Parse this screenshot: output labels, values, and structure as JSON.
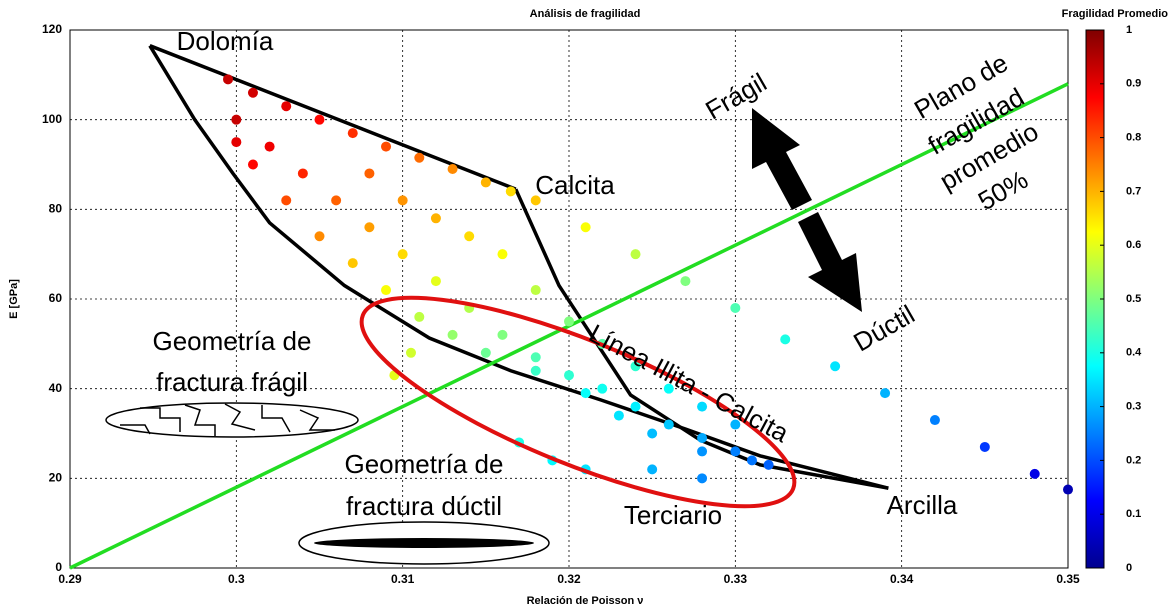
{
  "chart_data": {
    "type": "scatter",
    "title": "Análisis de fragilidad",
    "xlabel": "Relación de Poisson ν",
    "ylabel": "E [GPa]",
    "colorbar_label": "Fragilidad Promedio",
    "colormap": "jet",
    "grid": true,
    "xlim": [
      0.29,
      0.35
    ],
    "ylim": [
      0,
      120
    ],
    "xticks": [
      0.29,
      0.3,
      0.31,
      0.32,
      0.33,
      0.34,
      0.35
    ],
    "yticks": [
      0,
      20,
      40,
      60,
      80,
      100,
      120
    ],
    "clim": [
      0,
      1
    ],
    "cticks": [
      0,
      0.1,
      0.2,
      0.3,
      0.4,
      0.5,
      0.6,
      0.7,
      0.8,
      0.9,
      1
    ],
    "series": [
      {
        "x": [
          0.2995,
          0.301,
          0.303,
          0.305,
          0.307,
          0.309,
          0.311,
          0.313,
          0.315,
          0.3165,
          0.3,
          0.302,
          0.304,
          0.306,
          0.308,
          0.31,
          0.312,
          0.314,
          0.316,
          0.318,
          0.32,
          0.322,
          0.324,
          0.326,
          0.328,
          0.33,
          0.332,
          0.3,
          0.301,
          0.303,
          0.305,
          0.307,
          0.309,
          0.311,
          0.313,
          0.315,
          0.318,
          0.321,
          0.323,
          0.325,
          0.328,
          0.331,
          0.308,
          0.31,
          0.312,
          0.314,
          0.316,
          0.318,
          0.32,
          0.322,
          0.324,
          0.326,
          0.328,
          0.33,
          0.317,
          0.319,
          0.321,
          0.325,
          0.328,
          0.3095,
          0.3105,
          0.318,
          0.321,
          0.324,
          0.327,
          0.33,
          0.333,
          0.336,
          0.339,
          0.342,
          0.345,
          0.348,
          0.35
        ],
        "y": [
          109,
          106,
          103,
          100,
          97,
          94,
          91.5,
          89,
          86,
          84,
          100,
          94,
          88,
          82,
          76,
          70,
          64,
          58,
          52,
          47,
          43,
          40,
          36,
          32,
          29,
          26,
          23,
          95,
          90,
          82,
          74,
          68,
          62,
          56,
          52,
          48,
          44,
          39,
          34,
          30,
          26,
          24,
          88,
          82,
          78,
          74,
          70,
          62,
          55,
          50,
          45,
          40,
          36,
          32,
          28,
          24,
          22,
          22,
          20,
          43,
          48,
          82,
          76,
          70,
          64,
          58,
          51,
          45,
          39,
          33,
          27,
          21,
          17.5
        ],
        "c": [
          0.93,
          0.92,
          0.9,
          0.87,
          0.83,
          0.8,
          0.77,
          0.74,
          0.7,
          0.66,
          0.93,
          0.89,
          0.84,
          0.78,
          0.72,
          0.66,
          0.6,
          0.55,
          0.5,
          0.45,
          0.42,
          0.39,
          0.36,
          0.32,
          0.29,
          0.25,
          0.22,
          0.9,
          0.87,
          0.8,
          0.74,
          0.68,
          0.62,
          0.56,
          0.52,
          0.48,
          0.43,
          0.38,
          0.35,
          0.31,
          0.27,
          0.24,
          0.78,
          0.73,
          0.7,
          0.66,
          0.62,
          0.56,
          0.5,
          0.46,
          0.42,
          0.38,
          0.34,
          0.3,
          0.4,
          0.37,
          0.35,
          0.3,
          0.26,
          0.6,
          0.58,
          0.68,
          0.62,
          0.56,
          0.5,
          0.45,
          0.4,
          0.35,
          0.3,
          0.25,
          0.18,
          0.1,
          0.05
        ]
      }
    ],
    "lines": [
      {
        "color": "#000000",
        "x": [
          0.2948,
          0.3168
        ],
        "y": [
          116.5,
          84.5
        ]
      },
      {
        "color": "#000000",
        "x": [
          0.2948,
          0.2975,
          0.2998,
          0.302,
          0.3065,
          0.3116,
          0.3165,
          0.3219,
          0.327,
          0.3315,
          0.3392
        ],
        "y": [
          116.5,
          100,
          88,
          77,
          63,
          51.3,
          44,
          37.5,
          31,
          25,
          17.8
        ]
      },
      {
        "color": "#000000",
        "x": [
          0.3168,
          0.3194,
          0.3237,
          0.3279,
          0.3315,
          0.3392
        ],
        "y": [
          84.5,
          63,
          38.6,
          28.5,
          23,
          17.8
        ]
      },
      {
        "color": "#22dd22",
        "x": [
          0.29,
          0.35
        ],
        "y": [
          0,
          108
        ]
      }
    ],
    "annotations": {
      "dolomia": "Dolomía",
      "calcita": "Calcita",
      "arcilla": "Arcilla",
      "terciario": "Terciario",
      "fragil": "Frágil",
      "ductil": "Dúctil",
      "illita": "Línea Illita - Calcita",
      "plano": [
        "Plano de",
        "fragilidad",
        "promedio",
        "50%"
      ],
      "geo_fragil": [
        "Geometría de",
        "fractura frágil"
      ],
      "geo_ductil": [
        "Geometría de",
        "fractura dúctil"
      ]
    }
  }
}
